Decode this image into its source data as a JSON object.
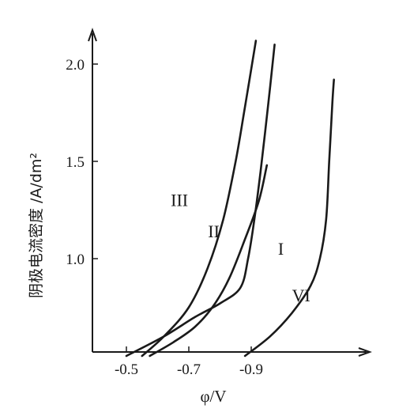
{
  "chart_data": {
    "type": "line",
    "xlabel": "φ/V",
    "ylabel": "阴极电流密度 /A/dm²",
    "x_ticks": [
      "-0.5",
      "-0.7",
      "-0.9"
    ],
    "y_ticks": [
      "1.0",
      "1.5",
      "2.0"
    ],
    "xlim": [
      -0.4,
      -1.25
    ],
    "ylim": [
      0.5,
      2.2
    ],
    "series": [
      {
        "name": "III",
        "points": [
          [
            -0.55,
            0.5
          ],
          [
            -0.62,
            0.6
          ],
          [
            -0.7,
            0.75
          ],
          [
            -0.76,
            0.95
          ],
          [
            -0.81,
            1.2
          ],
          [
            -0.85,
            1.5
          ],
          [
            -0.88,
            1.78
          ],
          [
            -0.915,
            2.12
          ]
        ]
      },
      {
        "name": "II",
        "points": [
          [
            -0.575,
            0.5
          ],
          [
            -0.65,
            0.57
          ],
          [
            -0.72,
            0.65
          ],
          [
            -0.78,
            0.76
          ],
          [
            -0.83,
            0.9
          ],
          [
            -0.88,
            1.1
          ],
          [
            -0.925,
            1.3
          ],
          [
            -0.95,
            1.48
          ]
        ]
      },
      {
        "name": "I",
        "points": [
          [
            -0.5,
            0.5
          ],
          [
            -0.62,
            0.6
          ],
          [
            -0.72,
            0.7
          ],
          [
            -0.8,
            0.77
          ],
          [
            -0.865,
            0.85
          ],
          [
            -0.89,
            1.0
          ],
          [
            -0.91,
            1.2
          ],
          [
            -0.93,
            1.45
          ],
          [
            -0.955,
            1.8
          ],
          [
            -0.975,
            2.1
          ]
        ]
      },
      {
        "name": "VI",
        "points": [
          [
            -0.88,
            0.5
          ],
          [
            -0.96,
            0.6
          ],
          [
            -1.03,
            0.72
          ],
          [
            -1.09,
            0.86
          ],
          [
            -1.12,
            1.0
          ],
          [
            -1.14,
            1.2
          ],
          [
            -1.15,
            1.5
          ],
          [
            -1.16,
            1.8
          ],
          [
            -1.165,
            1.92
          ]
        ]
      }
    ],
    "labels": [
      {
        "text": "III",
        "x": -0.67,
        "y": 1.27
      },
      {
        "text": "II",
        "x": -0.78,
        "y": 1.11
      },
      {
        "text": "I",
        "x": -0.995,
        "y": 1.02
      },
      {
        "text": "VI",
        "x": -1.06,
        "y": 0.78
      }
    ],
    "grid": false
  }
}
